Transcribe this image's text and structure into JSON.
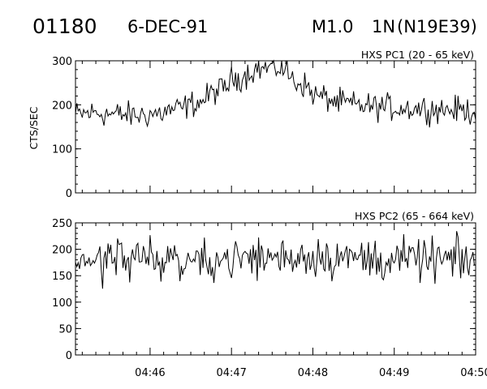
{
  "header": {
    "event_id": "01180",
    "date": "6-DEC-91",
    "flare_class": "M1.0",
    "optical_class": "1N",
    "location": "(N19E39)"
  },
  "chart_data": [
    {
      "type": "line",
      "title": "HXS PC1 (20 - 65 keV)",
      "ylabel": "CTS/SEC",
      "xlim": [
        "04:45:05",
        "04:50:00"
      ],
      "ylim": [
        0,
        300
      ],
      "yticks": [
        0,
        100,
        200,
        300
      ],
      "xticks": [
        "04:46",
        "04:47",
        "04:48",
        "04:49",
        "04:50"
      ],
      "xticks_labeled": false,
      "grid": false,
      "series": [
        {
          "x": [
            "04:45:05",
            "04:45:20",
            "04:45:35",
            "04:45:50",
            "04:46:05",
            "04:46:20",
            "04:46:35",
            "04:46:50",
            "04:47:05",
            "04:47:20",
            "04:47:35",
            "04:47:50",
            "04:48:05",
            "04:48:20",
            "04:48:35",
            "04:48:50",
            "04:49:05",
            "04:49:20",
            "04:49:35",
            "04:49:50",
            "04:50:00"
          ],
          "values": [
            178,
            182,
            178,
            176,
            180,
            190,
            205,
            232,
            262,
            282,
            285,
            250,
            218,
            205,
            198,
            195,
            193,
            192,
            190,
            188,
            185
          ]
        }
      ]
    },
    {
      "type": "line",
      "title": "HXS PC2 (65 - 664 keV)",
      "ylabel": "",
      "xlim": [
        "04:45:05",
        "04:50:00"
      ],
      "ylim": [
        0,
        250
      ],
      "yticks": [
        0,
        50,
        100,
        150,
        200,
        250
      ],
      "xticks": [
        "04:46",
        "04:47",
        "04:48",
        "04:49",
        "04:50"
      ],
      "xticks_labeled": true,
      "grid": false,
      "series": [
        {
          "x": [
            "04:45:05",
            "04:45:30",
            "04:46:00",
            "04:46:30",
            "04:47:00",
            "04:47:30",
            "04:48:00",
            "04:48:30",
            "04:49:00",
            "04:49:30",
            "04:50:00"
          ],
          "values": [
            180,
            182,
            183,
            180,
            182,
            185,
            188,
            183,
            180,
            180,
            178
          ]
        }
      ]
    }
  ]
}
